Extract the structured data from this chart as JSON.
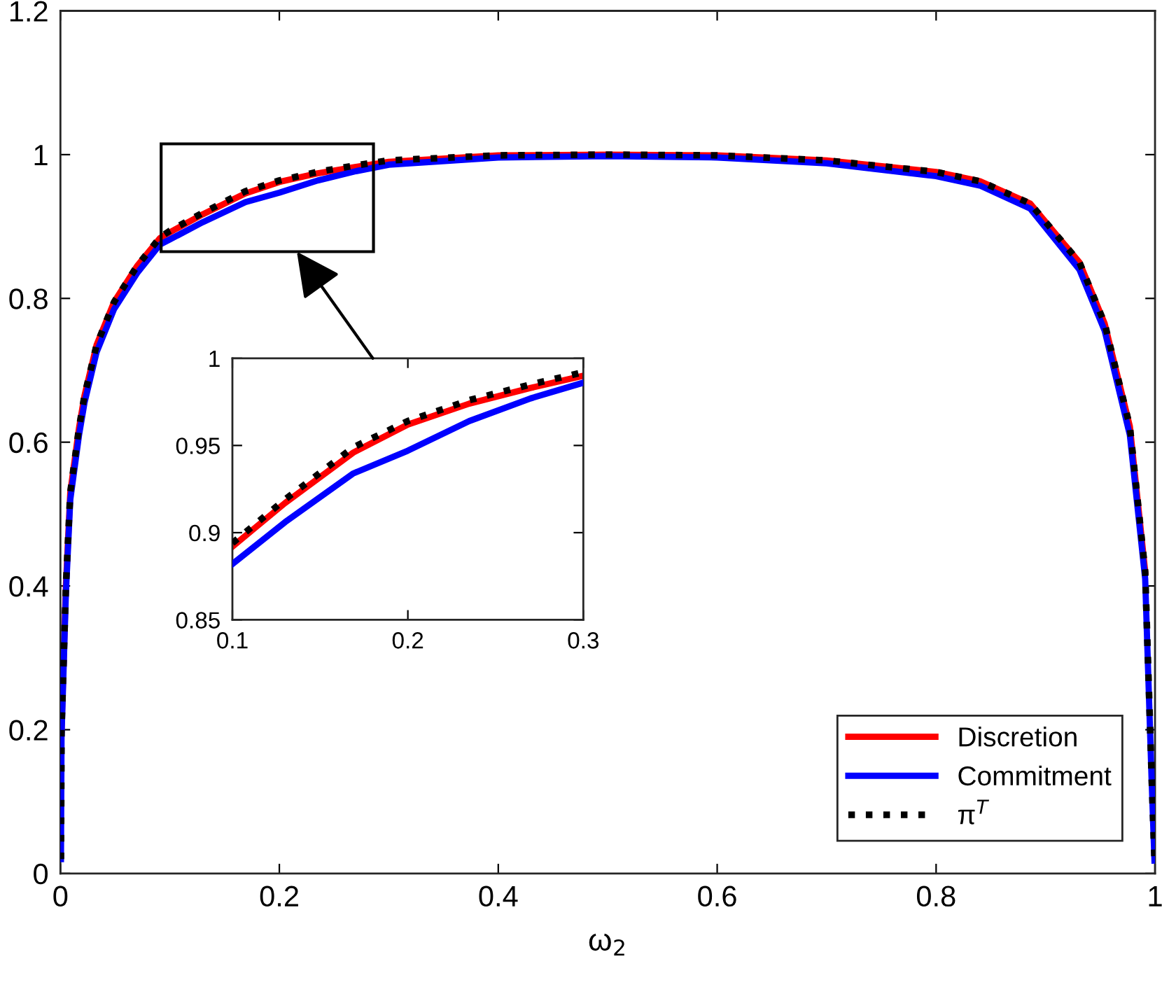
{
  "chart_data": [
    {
      "type": "line",
      "xlabel": "ω$_{2}$",
      "xlim": [
        0,
        1
      ],
      "ylim": [
        0,
        1.2
      ],
      "xticks": [
        0,
        0.2,
        0.4,
        0.6,
        0.8,
        1
      ],
      "yticks": [
        0,
        0.2,
        0.4,
        0.6,
        0.8,
        1,
        1.2
      ],
      "grid": false,
      "legend": "bottom right",
      "x": [
        0.0005,
        0.001,
        0.005,
        0.009,
        0.017,
        0.022,
        0.033,
        0.049,
        0.07,
        0.091,
        0.1,
        0.13,
        0.169,
        0.2,
        0.235,
        0.27,
        0.3,
        0.4,
        0.5,
        0.6,
        0.7,
        0.8,
        0.84,
        0.886,
        0.931,
        0.954,
        0.977,
        0.991,
        0.997,
        0.9995
      ],
      "series": [
        {
          "name": "Discretion",
          "color": "#ff0000",
          "line_style": "solid",
          "values": [
            null,
            0.2,
            0.4,
            0.53,
            0.62,
            0.665,
            0.735,
            0.795,
            0.845,
            0.884,
            0.892,
            0.917,
            0.946,
            0.962,
            0.974,
            0.983,
            0.99,
            0.999,
            1.0,
            0.999,
            0.992,
            0.976,
            0.963,
            0.932,
            0.85,
            0.765,
            0.622,
            0.42,
            null,
            null
          ]
        },
        {
          "name": "Commitment",
          "color": "#0000ff",
          "line_style": "solid",
          "values": [
            0.02,
            0.19,
            0.39,
            0.52,
            0.61,
            0.655,
            0.725,
            0.785,
            0.835,
            0.875,
            0.882,
            0.906,
            0.934,
            0.947,
            0.964,
            0.977,
            0.986,
            0.996,
            0.998,
            0.996,
            0.988,
            0.97,
            0.957,
            0.925,
            0.84,
            0.755,
            0.61,
            0.41,
            0.125,
            0.018
          ]
        },
        {
          "name": "π$^{T}$",
          "color": "#000000",
          "line_style": "dotted",
          "values": [
            0.02,
            0.2,
            0.4,
            0.53,
            0.62,
            0.665,
            0.735,
            0.795,
            0.845,
            0.885,
            0.894,
            0.919,
            0.949,
            0.964,
            0.976,
            0.985,
            0.992,
            0.999,
            1.0,
            0.999,
            0.992,
            0.976,
            0.963,
            0.932,
            0.85,
            0.765,
            0.622,
            0.42,
            0.13,
            0.02
          ]
        }
      ]
    },
    {
      "type": "line",
      "xlim": [
        0.1,
        0.3
      ],
      "ylim": [
        0.85,
        1
      ],
      "xticks": [
        0.1,
        0.2,
        0.3
      ],
      "yticks": [
        0.85,
        0.9,
        0.95,
        1
      ],
      "grid": false,
      "x": [
        0.1,
        0.13,
        0.169,
        0.2,
        0.235,
        0.27,
        0.3
      ],
      "series": [
        {
          "color": "#ff0000",
          "line_style": "solid",
          "values": [
            0.892,
            0.917,
            0.946,
            0.962,
            0.974,
            0.983,
            0.99
          ]
        },
        {
          "color": "#0000ff",
          "line_style": "solid",
          "values": [
            0.882,
            0.906,
            0.934,
            0.947,
            0.964,
            0.977,
            0.986
          ]
        },
        {
          "color": "#000000",
          "line_style": "dotted",
          "values": [
            0.894,
            0.919,
            0.949,
            0.964,
            0.976,
            0.985,
            0.992
          ]
        }
      ]
    }
  ]
}
